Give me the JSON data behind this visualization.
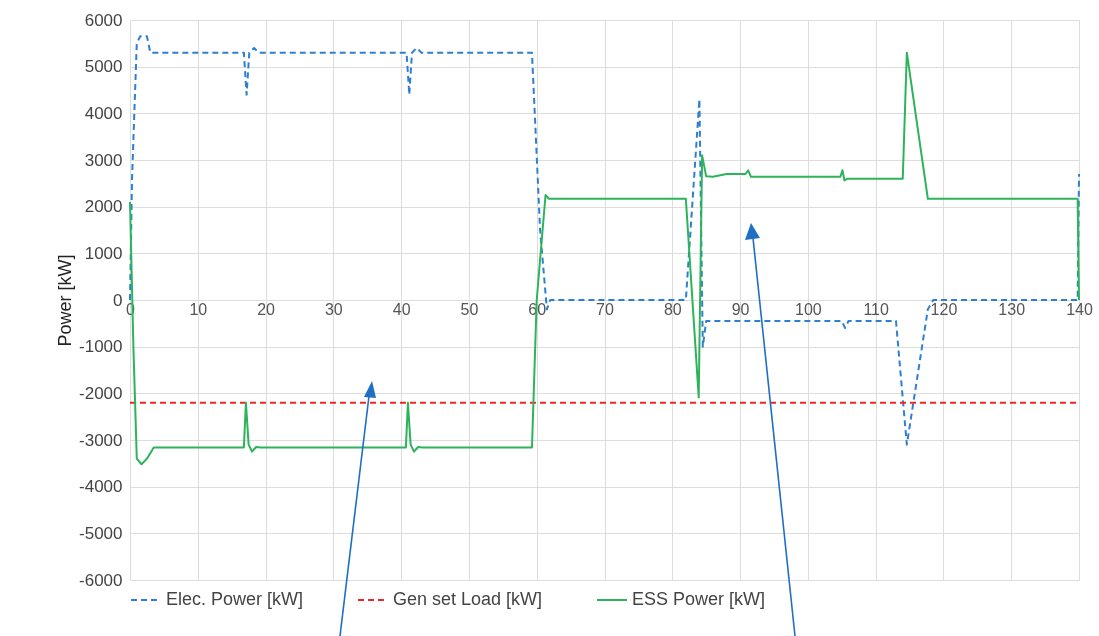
{
  "chart_data": {
    "type": "line",
    "ylabel": "Power [kW]",
    "xlim": [
      0,
      140
    ],
    "xticks": [
      0,
      10,
      20,
      30,
      40,
      50,
      60,
      70,
      80,
      90,
      100,
      110,
      120,
      130,
      140
    ],
    "ylim": [
      -6000,
      6000
    ],
    "yticks": [
      -6000,
      -5000,
      -4000,
      -3000,
      -2000,
      -1000,
      0,
      1000,
      2000,
      3000,
      4000,
      5000,
      6000
    ],
    "grid": true,
    "legend": "bottom",
    "series": [
      {
        "name": "Elec. Power [kW]",
        "color": "#2e7fd0",
        "line_style": "dashed",
        "x": [
          0,
          0.3,
          1,
          1.5,
          2.5,
          3,
          16.8,
          17.2,
          17.6,
          18.3,
          19,
          40.8,
          41.2,
          41.6,
          42.3,
          43,
          59.3,
          60.5,
          61.5,
          62,
          82,
          84,
          84.5,
          85,
          86,
          105,
          105.5,
          106,
          113,
          114.6,
          117.7,
          118.5,
          139.8,
          140
        ],
        "values": [
          0,
          2600,
          5500,
          5650,
          5650,
          5300,
          5300,
          4400,
          5300,
          5400,
          5300,
          5300,
          4400,
          5300,
          5400,
          5300,
          5300,
          1500,
          -200,
          0,
          0,
          4300,
          -1000,
          -450,
          -450,
          -450,
          -600,
          -450,
          -450,
          -3100,
          -200,
          0,
          0,
          2700
        ]
      },
      {
        "name": "Gen set Load [kW]",
        "color": "#f22424",
        "line_style": "dashed",
        "x": [
          0,
          140
        ],
        "values": [
          -2200,
          -2200
        ]
      },
      {
        "name": "ESS Power [kW]",
        "color": "#2db45a",
        "line_style": "solid",
        "x": [
          0,
          0.5,
          1,
          1.7,
          2.5,
          3.5,
          16.8,
          17.1,
          17.5,
          18,
          18.6,
          19.3,
          40.7,
          41,
          41.4,
          41.9,
          42.5,
          43.2,
          59.3,
          60,
          61.3,
          61.8,
          82,
          83.9,
          84.4,
          85,
          86,
          88,
          90.8,
          91.2,
          91.6,
          104.8,
          105.1,
          105.4,
          105.8,
          114,
          114.6,
          117.7,
          139.8,
          140
        ],
        "values": [
          2100,
          -1000,
          -3400,
          -3520,
          -3400,
          -3160,
          -3160,
          -2200,
          -3100,
          -3250,
          -3150,
          -3160,
          -3160,
          -2200,
          -3100,
          -3250,
          -3150,
          -3160,
          -3160,
          0,
          2250,
          2170,
          2170,
          -2090,
          3100,
          2650,
          2640,
          2700,
          2700,
          2780,
          2640,
          2640,
          2780,
          2560,
          2600,
          2600,
          5300,
          2170,
          2170,
          0
        ]
      }
    ]
  }
}
